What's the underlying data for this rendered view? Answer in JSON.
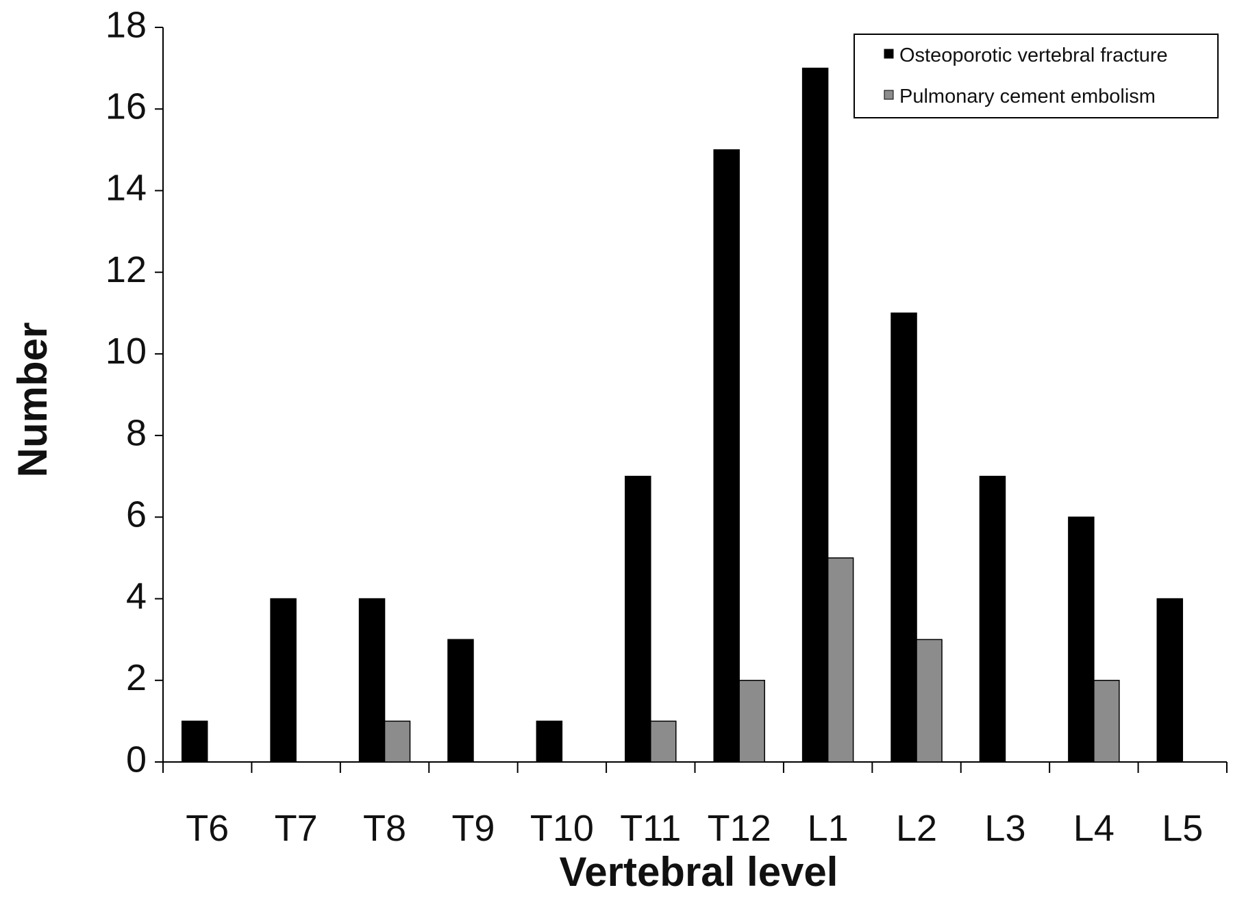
{
  "chart_data": {
    "type": "bar",
    "categories": [
      "T6",
      "T7",
      "T8",
      "T9",
      "T10",
      "T11",
      "T12",
      "L1",
      "L2",
      "L3",
      "L4",
      "L5"
    ],
    "series": [
      {
        "name": "Osteoporotic vertebral fracture",
        "values": [
          1,
          4,
          4,
          3,
          1,
          7,
          15,
          17,
          11,
          7,
          6,
          4
        ],
        "color": "#000000"
      },
      {
        "name": "Pulmonary cement embolism",
        "values": [
          0,
          0,
          1,
          0,
          0,
          1,
          2,
          5,
          3,
          0,
          2,
          0
        ],
        "color": "#8c8c8c"
      }
    ],
    "title": "",
    "xlabel": "Vertebral level",
    "ylabel": "Number",
    "ylim": [
      0,
      18
    ],
    "yticks": [
      0,
      2,
      4,
      6,
      8,
      10,
      12,
      14,
      16,
      18
    ],
    "grid": false,
    "legend_position": "top-right"
  }
}
